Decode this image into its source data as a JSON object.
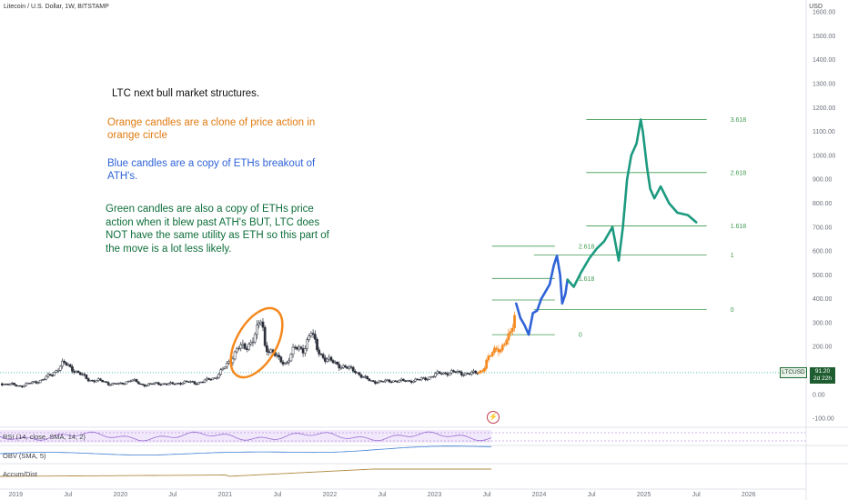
{
  "header": {
    "symbol_line": "Litecoin / U.S. Dollar, 1W, BITSTAMP",
    "currency": "USD"
  },
  "annotations": {
    "title": "LTC next bull market structures.",
    "orange": "Orange candles are a clone of price action in orange circle",
    "blue": "Blue candles are a copy of ETHs breakout of ATH's.",
    "green": "Green candles are also a copy of ETHs price action when it blew past ATH's BUT, LTC does NOT have the same utility as ETH so this part of the move is a lot less likely."
  },
  "indicators": {
    "rsi": "RSI (14, close, SMA, 14, 2)",
    "obv": "OBV (SMA, 5)",
    "accum": "Accum/Dist"
  },
  "price_badge": {
    "symbol": "LTCUSD",
    "price": "91.20",
    "countdown": "2d 22h"
  },
  "colors": {
    "up": "#26a69a",
    "down": "#ef5350",
    "orange": "#f5891f",
    "blue": "#2f63d8",
    "green": "#1c9a7f",
    "fib": "#3f9a4f",
    "rsi": "#9c6cd4",
    "obv": "#3c7fd1",
    "accum": "#b08a40"
  },
  "chart_data": {
    "type": "line",
    "title": "Litecoin / U.S. Dollar, 1W, BITSTAMP",
    "ylabel": "USD",
    "y_ticks": [
      1600,
      1500,
      1400,
      1300,
      1200,
      1100,
      1000,
      900,
      800,
      700,
      600,
      500,
      400,
      300,
      200,
      100,
      0,
      -100
    ],
    "y_tick_labels": [
      "1600.00",
      "1500.00",
      "1400.00",
      "1300.00",
      "1200.00",
      "1100.00",
      "1000.00",
      "900.00",
      "800.00",
      "700.00",
      "600.00",
      "500.00",
      "400.00",
      "300.00",
      "200.00",
      "100.00",
      "0.00",
      "-100.00"
    ],
    "ylim": [
      -130,
      1650
    ],
    "x_ticks": [
      2019,
      2019.5,
      2020,
      2020.5,
      2021,
      2021.5,
      2022,
      2022.5,
      2023,
      2023.5,
      2024,
      2024.5,
      2025,
      2025.5,
      2026
    ],
    "x_tick_labels": [
      "2019",
      "Jul",
      "2020",
      "Jul",
      "2021",
      "Jul",
      "2022",
      "Jul",
      "2023",
      "Jul",
      "2024",
      "Jul",
      "2025",
      "Jul",
      "2026"
    ],
    "xlim": [
      2018.85,
      2026.55
    ],
    "series": [
      {
        "kind": "historical",
        "points": [
          [
            2018.87,
            45
          ],
          [
            2018.97,
            40
          ],
          [
            2019.05,
            35
          ],
          [
            2019.15,
            48
          ],
          [
            2019.25,
            60
          ],
          [
            2019.35,
            85
          ],
          [
            2019.45,
            130
          ],
          [
            2019.5,
            120
          ],
          [
            2019.58,
            95
          ],
          [
            2019.7,
            60
          ],
          [
            2019.8,
            57
          ],
          [
            2019.9,
            45
          ],
          [
            2020.0,
            42
          ],
          [
            2020.1,
            62
          ],
          [
            2020.2,
            40
          ],
          [
            2020.3,
            43
          ],
          [
            2020.4,
            46
          ],
          [
            2020.5,
            42
          ],
          [
            2020.6,
            52
          ],
          [
            2020.72,
            48
          ],
          [
            2020.82,
            58
          ],
          [
            2020.9,
            70
          ],
          [
            2020.97,
            100
          ],
          [
            2021.05,
            140
          ],
          [
            2021.12,
            200
          ],
          [
            2021.2,
            190
          ],
          [
            2021.28,
            250
          ],
          [
            2021.35,
            310
          ],
          [
            2021.38,
            200
          ],
          [
            2021.45,
            180
          ],
          [
            2021.52,
            140
          ],
          [
            2021.58,
            130
          ],
          [
            2021.66,
            190
          ],
          [
            2021.75,
            190
          ],
          [
            2021.82,
            260
          ],
          [
            2021.88,
            190
          ],
          [
            2021.95,
            150
          ],
          [
            2022.0,
            140
          ],
          [
            2022.08,
            125
          ],
          [
            2022.16,
            110
          ],
          [
            2022.24,
            100
          ],
          [
            2022.32,
            70
          ],
          [
            2022.4,
            55
          ],
          [
            2022.5,
            52
          ],
          [
            2022.58,
            58
          ],
          [
            2022.66,
            55
          ],
          [
            2022.75,
            57
          ],
          [
            2022.85,
            60
          ],
          [
            2022.95,
            72
          ],
          [
            2023.05,
            88
          ],
          [
            2023.15,
            92
          ],
          [
            2023.25,
            90
          ],
          [
            2023.35,
            86
          ],
          [
            2023.42,
            92
          ]
        ]
      },
      {
        "kind": "projection-orange",
        "points": [
          [
            2023.42,
            92
          ],
          [
            2023.47,
            110
          ],
          [
            2023.5,
            140
          ],
          [
            2023.55,
            170
          ],
          [
            2023.6,
            200
          ],
          [
            2023.63,
            190
          ],
          [
            2023.68,
            220
          ],
          [
            2023.72,
            240
          ],
          [
            2023.75,
            300
          ],
          [
            2023.78,
            380
          ]
        ]
      },
      {
        "kind": "projection-blue",
        "points": [
          [
            2023.78,
            380
          ],
          [
            2023.82,
            320
          ],
          [
            2023.86,
            290
          ],
          [
            2023.9,
            250
          ],
          [
            2023.94,
            340
          ],
          [
            2023.98,
            350
          ],
          [
            2024.02,
            400
          ],
          [
            2024.06,
            430
          ],
          [
            2024.1,
            460
          ],
          [
            2024.14,
            540
          ],
          [
            2024.17,
            580
          ],
          [
            2024.2,
            500
          ],
          [
            2024.22,
            380
          ],
          [
            2024.25,
            420
          ],
          [
            2024.27,
            480
          ]
        ]
      },
      {
        "kind": "projection-green",
        "points": [
          [
            2024.27,
            480
          ],
          [
            2024.33,
            450
          ],
          [
            2024.4,
            510
          ],
          [
            2024.48,
            570
          ],
          [
            2024.55,
            610
          ],
          [
            2024.62,
            640
          ],
          [
            2024.7,
            700
          ],
          [
            2024.76,
            560
          ],
          [
            2024.8,
            700
          ],
          [
            2024.84,
            900
          ],
          [
            2024.88,
            1000
          ],
          [
            2024.93,
            1050
          ],
          [
            2024.97,
            1150
          ],
          [
            2024.99,
            1100
          ],
          [
            2025.03,
            950
          ],
          [
            2025.06,
            860
          ],
          [
            2025.1,
            820
          ],
          [
            2025.16,
            870
          ],
          [
            2025.24,
            800
          ],
          [
            2025.32,
            760
          ],
          [
            2025.42,
            750
          ],
          [
            2025.5,
            720
          ]
        ]
      }
    ],
    "fib_levels": [
      {
        "x": [
          2024.45,
          2025.6
        ],
        "y": 1150,
        "label": "3.618"
      },
      {
        "x": [
          2024.45,
          2025.6
        ],
        "y": 928,
        "label": "2.618"
      },
      {
        "x": [
          2024.45,
          2025.6
        ],
        "y": 705,
        "label": "1.618"
      },
      {
        "x": [
          2023.95,
          2025.6
        ],
        "y": 583,
        "label": "1"
      },
      {
        "x": [
          2023.95,
          2025.6
        ],
        "y": 355,
        "label": "0"
      },
      {
        "x": [
          2023.55,
          2024.15
        ],
        "y": 620,
        "label": "2.618"
      },
      {
        "x": [
          2023.55,
          2024.15
        ],
        "y": 485,
        "label": "1.618"
      },
      {
        "x": [
          2023.55,
          2024.15
        ],
        "y": 395,
        "label": ""
      },
      {
        "x": [
          2023.55,
          2024.15
        ],
        "y": 250,
        "label": "0"
      }
    ]
  }
}
